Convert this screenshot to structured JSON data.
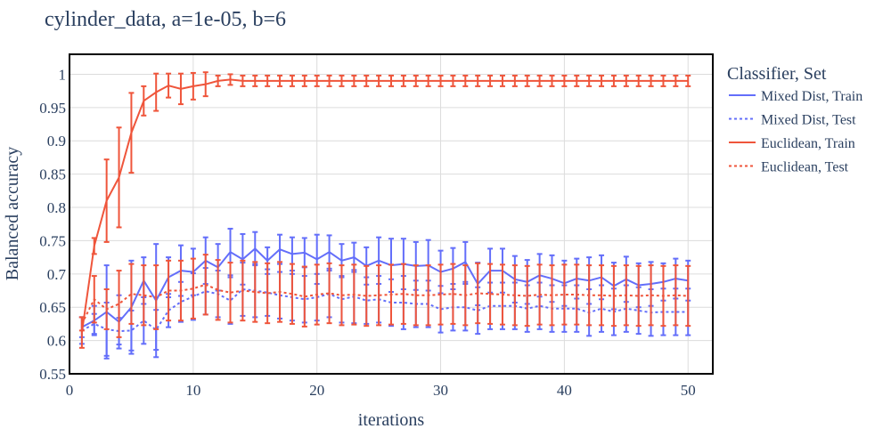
{
  "chart_data": {
    "type": "line",
    "title": "cylinder_data, a=1e-05, b=6",
    "xlabel": "iterations",
    "ylabel": "Balanced accuracy",
    "xlim": [
      0,
      52
    ],
    "ylim": [
      0.55,
      1.03
    ],
    "x_ticks": [
      0,
      10,
      20,
      30,
      40,
      50
    ],
    "x_tick_labels": [
      "0",
      "10",
      "20",
      "30",
      "40",
      "50"
    ],
    "y_ticks": [
      0.55,
      0.6,
      0.65,
      0.7,
      0.75,
      0.8,
      0.85,
      0.9,
      0.95,
      1.0
    ],
    "y_tick_labels": [
      "0.55",
      "0.6",
      "0.65",
      "0.7",
      "0.75",
      "0.8",
      "0.85",
      "0.9",
      "0.95",
      "1"
    ],
    "grid": true,
    "legend_title": "Classifier, Set",
    "legend_position": "right",
    "x": [
      1,
      2,
      3,
      4,
      5,
      6,
      7,
      8,
      9,
      10,
      11,
      12,
      13,
      14,
      15,
      16,
      17,
      18,
      19,
      20,
      21,
      22,
      23,
      24,
      25,
      26,
      27,
      28,
      29,
      30,
      31,
      32,
      33,
      34,
      35,
      36,
      37,
      38,
      39,
      40,
      41,
      42,
      43,
      44,
      45,
      46,
      47,
      48,
      49,
      50
    ],
    "series": [
      {
        "name": "Mixed Dist, Train",
        "color": "#636efa",
        "dash": "solid",
        "values": [
          0.62,
          0.63,
          0.643,
          0.628,
          0.65,
          0.69,
          0.66,
          0.695,
          0.705,
          0.703,
          0.72,
          0.71,
          0.733,
          0.722,
          0.738,
          0.72,
          0.737,
          0.73,
          0.732,
          0.722,
          0.733,
          0.72,
          0.725,
          0.712,
          0.72,
          0.713,
          0.715,
          0.712,
          0.713,
          0.703,
          0.708,
          0.718,
          0.685,
          0.705,
          0.705,
          0.692,
          0.688,
          0.698,
          0.693,
          0.686,
          0.693,
          0.69,
          0.695,
          0.682,
          0.692,
          0.683,
          0.685,
          0.688,
          0.693,
          0.69
        ],
        "errors": [
          0.015,
          0.022,
          0.07,
          0.04,
          0.07,
          0.035,
          0.085,
          0.03,
          0.038,
          0.035,
          0.035,
          0.035,
          0.035,
          0.038,
          0.025,
          0.02,
          0.022,
          0.025,
          0.022,
          0.037,
          0.025,
          0.025,
          0.022,
          0.028,
          0.035,
          0.04,
          0.038,
          0.036,
          0.038,
          0.032,
          0.031,
          0.03,
          0.032,
          0.033,
          0.033,
          0.035,
          0.033,
          0.032,
          0.035,
          0.034,
          0.03,
          0.035,
          0.033,
          0.035,
          0.034,
          0.033,
          0.033,
          0.028,
          0.03,
          0.03
        ]
      },
      {
        "name": "Mixed Dist, Test",
        "color": "#636efa",
        "dash": "dot",
        "values": [
          0.615,
          0.625,
          0.617,
          0.614,
          0.615,
          0.63,
          0.616,
          0.645,
          0.658,
          0.666,
          0.674,
          0.67,
          0.66,
          0.677,
          0.675,
          0.672,
          0.668,
          0.665,
          0.662,
          0.665,
          0.67,
          0.662,
          0.666,
          0.66,
          0.662,
          0.657,
          0.657,
          0.655,
          0.655,
          0.647,
          0.65,
          0.65,
          0.645,
          0.652,
          0.652,
          0.652,
          0.648,
          0.652,
          0.648,
          0.648,
          0.648,
          0.642,
          0.648,
          0.643,
          0.648,
          0.645,
          0.642,
          0.643,
          0.643,
          0.643
        ],
        "errors": [
          0.02,
          0.015,
          0.04,
          0.02,
          0.03,
          0.035,
          0.03,
          0.025,
          0.03,
          0.035,
          0.035,
          0.035,
          0.035,
          0.04,
          0.04,
          0.035,
          0.035,
          0.035,
          0.035,
          0.035,
          0.035,
          0.035,
          0.04,
          0.035,
          0.035,
          0.035,
          0.04,
          0.035,
          0.035,
          0.035,
          0.035,
          0.035,
          0.035,
          0.035,
          0.035,
          0.035,
          0.035,
          0.035,
          0.035,
          0.035,
          0.035,
          0.035,
          0.035,
          0.035,
          0.035,
          0.035,
          0.035,
          0.035,
          0.035,
          0.035
        ]
      },
      {
        "name": "Euclidean, Train",
        "color": "#ef553b",
        "dash": "solid",
        "values": [
          0.612,
          0.742,
          0.81,
          0.845,
          0.912,
          0.96,
          0.973,
          0.983,
          0.978,
          0.982,
          0.985,
          0.99,
          0.992,
          0.99,
          0.99,
          0.99,
          0.99,
          0.99,
          0.99,
          0.99,
          0.99,
          0.99,
          0.99,
          0.99,
          0.99,
          0.99,
          0.99,
          0.99,
          0.99,
          0.99,
          0.99,
          0.99,
          0.99,
          0.99,
          0.99,
          0.99,
          0.99,
          0.99,
          0.99,
          0.99,
          0.99,
          0.99,
          0.99,
          0.99,
          0.99,
          0.99,
          0.99,
          0.99,
          0.99,
          0.99
        ],
        "errors": [
          0.023,
          0.012,
          0.062,
          0.075,
          0.06,
          0.022,
          0.028,
          0.018,
          0.023,
          0.02,
          0.018,
          0.008,
          0.008,
          0.008,
          0.008,
          0.008,
          0.008,
          0.008,
          0.008,
          0.008,
          0.008,
          0.008,
          0.008,
          0.008,
          0.008,
          0.008,
          0.008,
          0.008,
          0.008,
          0.008,
          0.008,
          0.008,
          0.008,
          0.008,
          0.008,
          0.008,
          0.008,
          0.008,
          0.008,
          0.008,
          0.008,
          0.008,
          0.008,
          0.008,
          0.008,
          0.008,
          0.008,
          0.008,
          0.008,
          0.008
        ]
      },
      {
        "name": "Euclidean, Test",
        "color": "#ef553b",
        "dash": "dot",
        "values": [
          0.625,
          0.662,
          0.647,
          0.655,
          0.67,
          0.668,
          0.665,
          0.675,
          0.675,
          0.678,
          0.684,
          0.676,
          0.672,
          0.675,
          0.673,
          0.671,
          0.673,
          0.67,
          0.666,
          0.669,
          0.671,
          0.668,
          0.669,
          0.667,
          0.668,
          0.669,
          0.67,
          0.668,
          0.668,
          0.669,
          0.67,
          0.668,
          0.671,
          0.67,
          0.669,
          0.668,
          0.667,
          0.669,
          0.668,
          0.669,
          0.669,
          0.668,
          0.668,
          0.667,
          0.668,
          0.667,
          0.668,
          0.667,
          0.668,
          0.667
        ],
        "errors": [
          0.01,
          0.035,
          0.03,
          0.05,
          0.045,
          0.045,
          0.048,
          0.045,
          0.045,
          0.045,
          0.045,
          0.045,
          0.045,
          0.045,
          0.045,
          0.045,
          0.045,
          0.045,
          0.045,
          0.045,
          0.045,
          0.045,
          0.045,
          0.045,
          0.045,
          0.045,
          0.045,
          0.045,
          0.045,
          0.045,
          0.045,
          0.045,
          0.045,
          0.045,
          0.045,
          0.045,
          0.045,
          0.045,
          0.045,
          0.045,
          0.045,
          0.045,
          0.045,
          0.045,
          0.045,
          0.045,
          0.045,
          0.045,
          0.045,
          0.045
        ]
      }
    ]
  }
}
